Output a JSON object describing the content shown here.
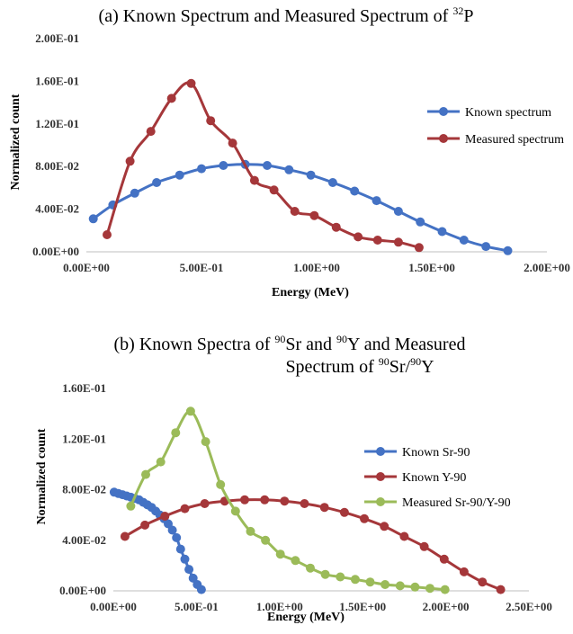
{
  "chart_data": [
    {
      "type": "scatter",
      "title_prefix": "(a) Known Spectrum and Measured Spectrum of ",
      "title_sup": "32",
      "title_suffix": "P",
      "xlabel": "Energy (MeV)",
      "ylabel": "Normalized count",
      "xlim": [
        0,
        2.0
      ],
      "ylim": [
        0,
        0.2
      ],
      "x_ticks": [
        0,
        0.5,
        1.0,
        1.5,
        2.0
      ],
      "x_tick_labels": [
        "0.00E+00",
        "5.00E-01",
        "1.00E+00",
        "1.50E+00",
        "2.00E+00"
      ],
      "y_ticks": [
        0,
        0.04,
        0.08,
        0.12,
        0.16,
        0.2
      ],
      "y_tick_labels": [
        "0.00E+00",
        "4.00E-02",
        "8.00E-02",
        "1.20E-01",
        "1.60E-01",
        "2.00E-01"
      ],
      "grid": false,
      "legend_position": "right",
      "series": [
        {
          "name": "Known spectrum",
          "color": "#4472c4",
          "points": [
            [
              0.03,
              0.031
            ],
            [
              0.115,
              0.044
            ],
            [
              0.21,
              0.055
            ],
            [
              0.305,
              0.065
            ],
            [
              0.405,
              0.072
            ],
            [
              0.5,
              0.078
            ],
            [
              0.595,
              0.081
            ],
            [
              0.69,
              0.082
            ],
            [
              0.785,
              0.081
            ],
            [
              0.88,
              0.077
            ],
            [
              0.975,
              0.072
            ],
            [
              1.07,
              0.065
            ],
            [
              1.165,
              0.057
            ],
            [
              1.26,
              0.048
            ],
            [
              1.355,
              0.038
            ],
            [
              1.45,
              0.028
            ],
            [
              1.545,
              0.019
            ],
            [
              1.64,
              0.011
            ],
            [
              1.735,
              0.005
            ],
            [
              1.83,
              0.001
            ]
          ]
        },
        {
          "name": "Measured spectrum",
          "color": "#a5373a",
          "points": [
            [
              0.09,
              0.016
            ],
            [
              0.19,
              0.085
            ],
            [
              0.28,
              0.113
            ],
            [
              0.37,
              0.144
            ],
            [
              0.455,
              0.158
            ],
            [
              0.54,
              0.123
            ],
            [
              0.635,
              0.102
            ],
            [
              0.73,
              0.067
            ],
            [
              0.815,
              0.058
            ],
            [
              0.905,
              0.038
            ],
            [
              0.99,
              0.034
            ],
            [
              1.085,
              0.023
            ],
            [
              1.18,
              0.014
            ],
            [
              1.265,
              0.011
            ],
            [
              1.355,
              0.009
            ],
            [
              1.445,
              0.004
            ]
          ]
        }
      ]
    },
    {
      "type": "scatter",
      "title_line1_parts": [
        "(b) Known Spectra of ",
        "90",
        "Sr and ",
        "90",
        "Y and Measured"
      ],
      "title_line2_parts": [
        "Spectrum of ",
        "90",
        "Sr/",
        "90",
        "Y"
      ],
      "xlabel": "Energy (MeV)",
      "ylabel": "Normalized count",
      "xlim": [
        0,
        2.5
      ],
      "ylim": [
        0,
        0.16
      ],
      "x_ticks": [
        0,
        0.5,
        1.0,
        1.5,
        2.0,
        2.5
      ],
      "x_tick_labels": [
        "0.00E+00",
        "5.00E-01",
        "1.00E+00",
        "1.50E+00",
        "2.00E+00",
        "2.50E+00"
      ],
      "y_ticks": [
        0,
        0.04,
        0.08,
        0.12,
        0.16
      ],
      "y_tick_labels": [
        "0.00E+00",
        "4.00E-02",
        "8.00E-02",
        "1.20E-01",
        "1.60E-01"
      ],
      "grid": false,
      "legend_position": "right",
      "series": [
        {
          "name": "Known Sr-90",
          "color": "#4472c4",
          "points": [
            [
              0.005,
              0.078
            ],
            [
              0.03,
              0.077
            ],
            [
              0.055,
              0.076
            ],
            [
              0.08,
              0.075
            ],
            [
              0.105,
              0.074
            ],
            [
              0.13,
              0.073
            ],
            [
              0.155,
              0.072
            ],
            [
              0.18,
              0.07
            ],
            [
              0.205,
              0.068
            ],
            [
              0.23,
              0.066
            ],
            [
              0.255,
              0.063
            ],
            [
              0.28,
              0.06
            ],
            [
              0.305,
              0.057
            ],
            [
              0.33,
              0.053
            ],
            [
              0.355,
              0.048
            ],
            [
              0.38,
              0.042
            ],
            [
              0.405,
              0.033
            ],
            [
              0.43,
              0.025
            ],
            [
              0.455,
              0.017
            ],
            [
              0.48,
              0.01
            ],
            [
              0.505,
              0.005
            ],
            [
              0.53,
              0.001
            ]
          ]
        },
        {
          "name": "Known Y-90",
          "color": "#a5373a",
          "points": [
            [
              0.07,
              0.043
            ],
            [
              0.19,
              0.052
            ],
            [
              0.31,
              0.059
            ],
            [
              0.43,
              0.065
            ],
            [
              0.55,
              0.069
            ],
            [
              0.67,
              0.071
            ],
            [
              0.79,
              0.072
            ],
            [
              0.91,
              0.072
            ],
            [
              1.03,
              0.071
            ],
            [
              1.15,
              0.069
            ],
            [
              1.27,
              0.066
            ],
            [
              1.39,
              0.062
            ],
            [
              1.51,
              0.057
            ],
            [
              1.63,
              0.051
            ],
            [
              1.75,
              0.043
            ],
            [
              1.87,
              0.035
            ],
            [
              1.99,
              0.025
            ],
            [
              2.11,
              0.015
            ],
            [
              2.22,
              0.007
            ],
            [
              2.33,
              0.001
            ]
          ]
        },
        {
          "name": "Measured Sr-90/Y-90",
          "color": "#9bbb59",
          "points": [
            [
              0.105,
              0.067
            ],
            [
              0.195,
              0.092
            ],
            [
              0.285,
              0.102
            ],
            [
              0.375,
              0.125
            ],
            [
              0.465,
              0.142
            ],
            [
              0.555,
              0.118
            ],
            [
              0.645,
              0.084
            ],
            [
              0.735,
              0.063
            ],
            [
              0.825,
              0.047
            ],
            [
              0.915,
              0.04
            ],
            [
              1.005,
              0.029
            ],
            [
              1.095,
              0.024
            ],
            [
              1.185,
              0.018
            ],
            [
              1.275,
              0.013
            ],
            [
              1.365,
              0.011
            ],
            [
              1.455,
              0.009
            ],
            [
              1.545,
              0.007
            ],
            [
              1.635,
              0.005
            ],
            [
              1.725,
              0.004
            ],
            [
              1.815,
              0.003
            ],
            [
              1.905,
              0.002
            ],
            [
              1.995,
              0.001
            ]
          ]
        }
      ]
    }
  ]
}
